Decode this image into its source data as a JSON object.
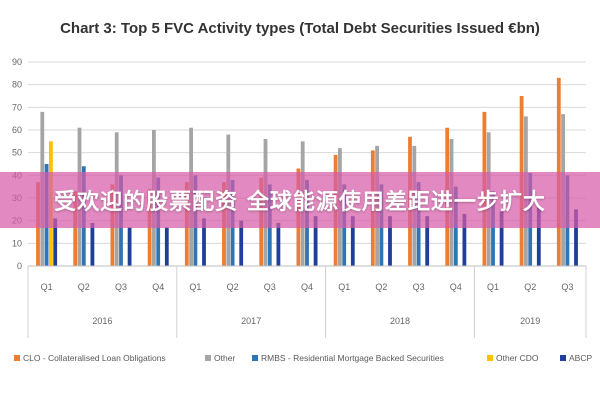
{
  "banner": {
    "text": "受欢迎的股票配资 全球能源使用差距进一步扩大"
  },
  "chart_data": {
    "type": "bar",
    "title": "Chart 3: Top 5 FVC Activity types (Total Debt Securities Issued €bn)",
    "xlabel": "",
    "ylabel": "",
    "ylim": [
      0,
      90
    ],
    "yticks": [
      0,
      10,
      20,
      30,
      40,
      50,
      60,
      70,
      80,
      90
    ],
    "grid": true,
    "legend_position": "bottom",
    "categories": [
      "Q1",
      "Q2",
      "Q3",
      "Q4",
      "Q1",
      "Q2",
      "Q3",
      "Q4",
      "Q1",
      "Q2",
      "Q3",
      "Q4",
      "Q1",
      "Q2",
      "Q3"
    ],
    "groups": [
      {
        "label": "2016",
        "count": 4
      },
      {
        "label": "2017",
        "count": 4
      },
      {
        "label": "2018",
        "count": 4
      },
      {
        "label": "2019",
        "count": 3
      }
    ],
    "series": [
      {
        "name": "CLO - Collateralised Loan Obligations",
        "color": "#ED7D31",
        "values": [
          37,
          33,
          36,
          34,
          37,
          37,
          39,
          43,
          49,
          51,
          57,
          61,
          68,
          75,
          83
        ]
      },
      {
        "name": "Other",
        "color": "#A5A5A5",
        "values": [
          68,
          61,
          59,
          60,
          61,
          58,
          56,
          55,
          52,
          53,
          53,
          56,
          59,
          66,
          67
        ]
      },
      {
        "name": "RMBS - Residential Mortgage Backed Securities",
        "color": "#2E75B6",
        "values": [
          45,
          44,
          40,
          39,
          40,
          38,
          36,
          38,
          36,
          36,
          37,
          35,
          33,
          41,
          40
        ]
      },
      {
        "name": "Other CDO",
        "color": "#FFC000",
        "values": [
          55,
          0,
          0,
          0,
          0,
          0,
          0,
          0,
          0,
          0,
          0,
          0,
          0,
          0,
          0
        ]
      },
      {
        "name": "ABCP",
        "color": "#1F3F99",
        "values": [
          21,
          19,
          17,
          17,
          21,
          20,
          19,
          22,
          22,
          22,
          22,
          23,
          24,
          26,
          25
        ]
      }
    ]
  }
}
